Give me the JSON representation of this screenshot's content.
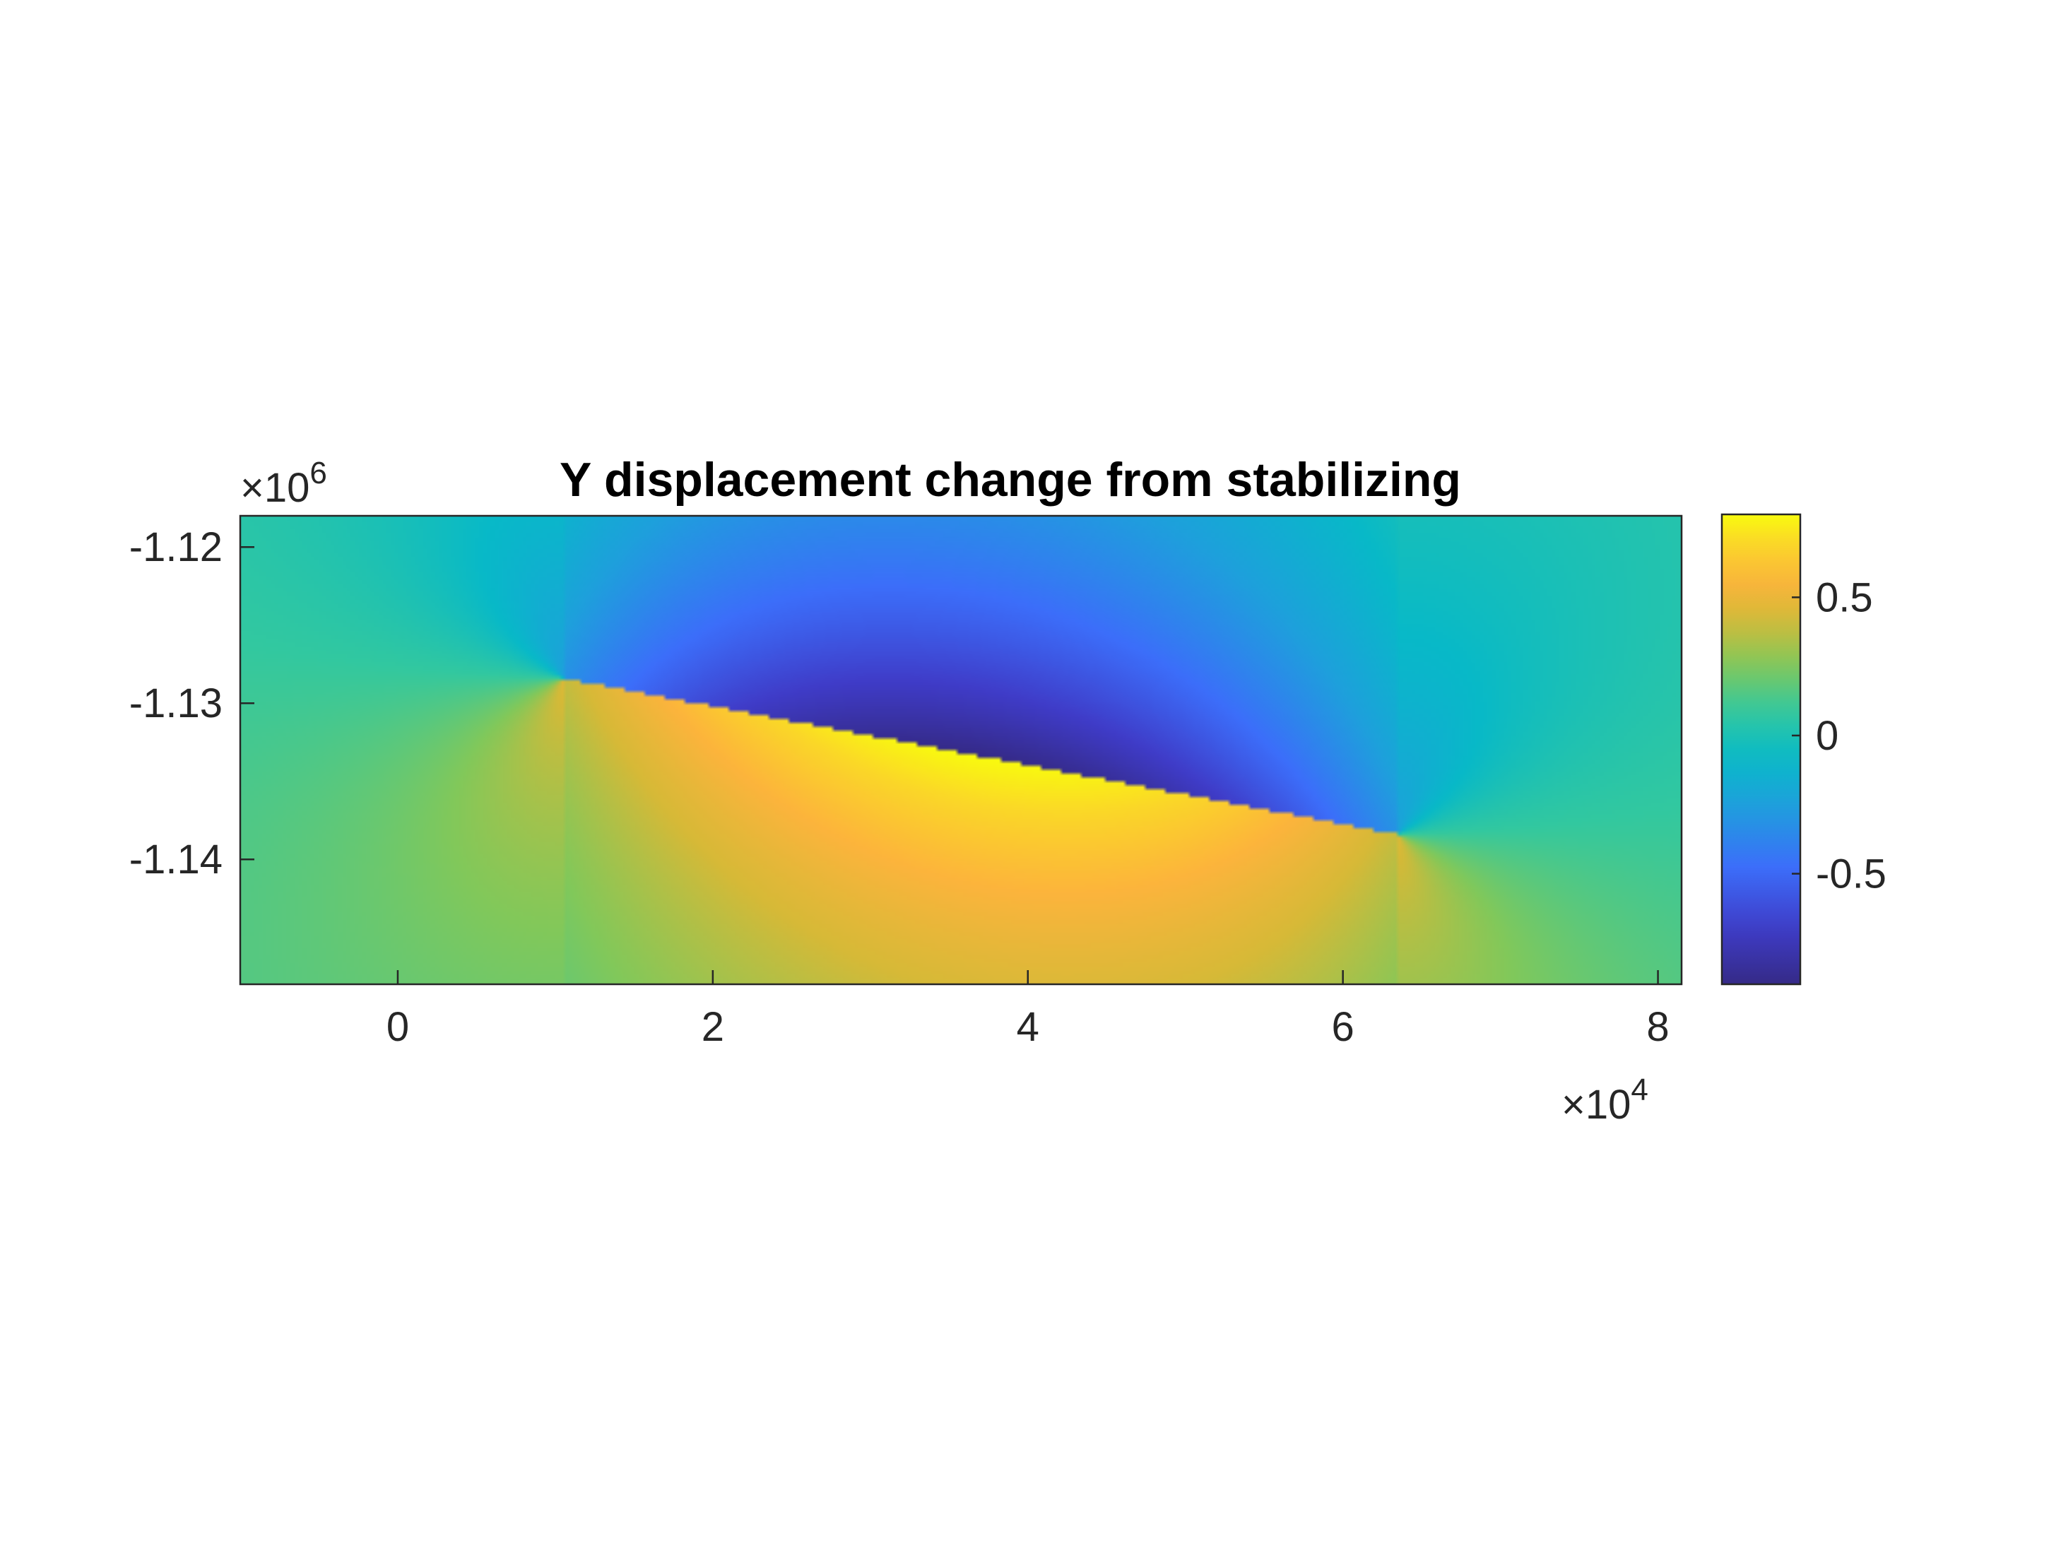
{
  "chart_data": {
    "type": "heatmap",
    "title": "Y displacement change from stabilizing",
    "xlabel": "",
    "ylabel": "",
    "x_ticks": [
      0,
      2,
      4,
      6,
      8
    ],
    "x_tick_labels": [
      "0",
      "2",
      "4",
      "6",
      "8"
    ],
    "x_exponent": "4",
    "xlim": [
      -1.0,
      8.15
    ],
    "y_ticks": [
      -1.12,
      -1.13,
      -1.14
    ],
    "y_tick_labels": [
      "-1.12",
      "-1.13",
      "-1.14"
    ],
    "y_exponent": "6",
    "ylim": [
      -1.148,
      -1.118
    ],
    "colorbar": {
      "ticks": [
        0.5,
        0,
        -0.5
      ],
      "tick_labels": [
        "0.5",
        "0",
        "-0.5"
      ],
      "clim": [
        -0.9,
        0.8
      ],
      "colormap": "parula"
    },
    "fault": {
      "start": [
        1.05,
        -1.1284
      ],
      "end": [
        6.35,
        -1.1384
      ]
    },
    "field": {
      "peak_positive": {
        "x": 3.7,
        "y": -1.135,
        "value": 0.8
      },
      "peak_negative": {
        "x": 3.7,
        "y": -1.134,
        "value": -0.9
      },
      "background_value": 0.1
    },
    "grid": false,
    "colors": {
      "axis": "#262626",
      "background": "#ffffff"
    }
  }
}
